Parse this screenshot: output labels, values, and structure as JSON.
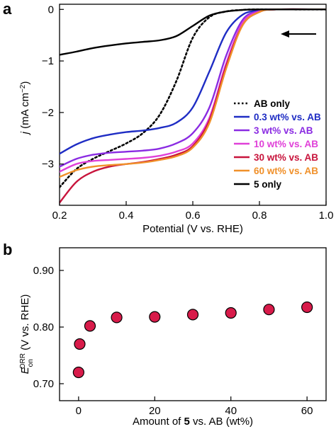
{
  "chart_data": [
    {
      "panel": "a",
      "type": "line",
      "title": "",
      "xlabel": "Potential (V vs. RHE)",
      "ylabel_parts": {
        "italic": "j",
        "main": " (mA cm",
        "sup": "−2",
        "close": ")"
      },
      "xlim": [
        0.2,
        1.0
      ],
      "ylim": [
        -3.8,
        0.1
      ],
      "x_ticks": [
        0.2,
        0.4,
        0.6,
        0.8,
        1.0
      ],
      "x_tick_labels": [
        "0.2",
        "0.4",
        "0.6",
        "0.8",
        "1.0"
      ],
      "y_ticks": [
        0,
        -1,
        -2,
        -3
      ],
      "y_tick_labels": [
        "0",
        "−1",
        "−2",
        "−3"
      ],
      "grid": false,
      "legend_position": "bottom-right",
      "annotation": "arrow pointing left (scan direction)",
      "series": [
        {
          "name": "AB only",
          "color": "#000000",
          "dash": "dotted",
          "x": [
            0.2,
            0.25,
            0.3,
            0.35,
            0.4,
            0.45,
            0.5,
            0.55,
            0.6,
            0.65,
            0.7,
            0.75,
            0.8,
            1.0
          ],
          "y": [
            -3.45,
            -3.1,
            -2.9,
            -2.75,
            -2.6,
            -2.4,
            -2.05,
            -1.4,
            -0.55,
            -0.15,
            -0.04,
            -0.01,
            0,
            0
          ]
        },
        {
          "name": "0.3 wt% vs. AB",
          "color": "#1f2dc4",
          "x": [
            0.2,
            0.25,
            0.3,
            0.35,
            0.4,
            0.45,
            0.5,
            0.55,
            0.6,
            0.65,
            0.7,
            0.75,
            0.8,
            0.85,
            1.0
          ],
          "y": [
            -2.8,
            -2.62,
            -2.5,
            -2.43,
            -2.38,
            -2.35,
            -2.3,
            -2.2,
            -1.9,
            -1.2,
            -0.45,
            -0.1,
            -0.02,
            0,
            0
          ]
        },
        {
          "name": "3 wt% vs. AB",
          "color": "#8a2be2",
          "x": [
            0.2,
            0.25,
            0.3,
            0.35,
            0.4,
            0.45,
            0.5,
            0.55,
            0.6,
            0.65,
            0.7,
            0.75,
            0.8,
            0.85,
            1.0
          ],
          "y": [
            -3.05,
            -2.9,
            -2.82,
            -2.78,
            -2.76,
            -2.74,
            -2.7,
            -2.6,
            -2.4,
            -1.9,
            -0.9,
            -0.2,
            -0.03,
            0,
            0
          ]
        },
        {
          "name": "10 wt% vs. AB",
          "color": "#e040d8",
          "x": [
            0.2,
            0.25,
            0.3,
            0.35,
            0.4,
            0.45,
            0.5,
            0.55,
            0.6,
            0.65,
            0.7,
            0.75,
            0.8,
            0.85,
            1.0
          ],
          "y": [
            -3.15,
            -3.0,
            -2.94,
            -2.92,
            -2.9,
            -2.88,
            -2.84,
            -2.76,
            -2.6,
            -2.1,
            -1.05,
            -0.25,
            -0.04,
            0,
            0
          ]
        },
        {
          "name": "30 wt% vs. AB",
          "color": "#c8143c",
          "x": [
            0.2,
            0.25,
            0.3,
            0.35,
            0.4,
            0.45,
            0.5,
            0.55,
            0.6,
            0.65,
            0.7,
            0.75,
            0.8,
            0.85,
            1.0
          ],
          "y": [
            -3.75,
            -3.35,
            -3.15,
            -3.05,
            -3.0,
            -2.96,
            -2.9,
            -2.82,
            -2.65,
            -2.15,
            -1.1,
            -0.3,
            -0.05,
            0,
            0
          ]
        },
        {
          "name": "60 wt% vs. AB",
          "color": "#f0902a",
          "x": [
            0.2,
            0.25,
            0.3,
            0.35,
            0.4,
            0.45,
            0.5,
            0.55,
            0.6,
            0.65,
            0.7,
            0.75,
            0.8,
            0.85,
            1.0
          ],
          "y": [
            -3.25,
            -3.12,
            -3.05,
            -3.02,
            -3.0,
            -2.97,
            -2.92,
            -2.85,
            -2.68,
            -2.2,
            -1.15,
            -0.3,
            -0.05,
            0,
            0
          ]
        },
        {
          "name": "5 only",
          "color": "#000000",
          "x": [
            0.2,
            0.25,
            0.3,
            0.35,
            0.4,
            0.45,
            0.5,
            0.55,
            0.6,
            0.65,
            0.7,
            0.75,
            0.8,
            1.0
          ],
          "y": [
            -0.88,
            -0.82,
            -0.75,
            -0.7,
            -0.66,
            -0.63,
            -0.6,
            -0.52,
            -0.32,
            -0.12,
            -0.04,
            -0.01,
            0,
            0
          ]
        }
      ]
    },
    {
      "panel": "b",
      "type": "scatter",
      "title": "",
      "xlabel_parts": {
        "pre": "Amount of ",
        "bold": "5",
        "post": " vs. AB (wt%)"
      },
      "ylabel_parts": {
        "italic": "E",
        "sub": "on",
        "sup": "ORR",
        "main": " (V vs. RHE)"
      },
      "xlim": [
        -5,
        65
      ],
      "ylim": [
        0.67,
        0.94
      ],
      "x_ticks": [
        0,
        20,
        40,
        60
      ],
      "x_tick_labels": [
        "0",
        "20",
        "40",
        "60"
      ],
      "y_ticks": [
        0.7,
        0.8,
        0.9
      ],
      "y_tick_labels": [
        "0.70",
        "0.80",
        "0.90"
      ],
      "grid": false,
      "marker_color": "#d81b4a",
      "x": [
        0,
        0.3,
        3,
        10,
        20,
        30,
        40,
        50,
        60
      ],
      "y": [
        0.72,
        0.77,
        0.802,
        0.817,
        0.818,
        0.822,
        0.825,
        0.831,
        0.835
      ]
    }
  ]
}
